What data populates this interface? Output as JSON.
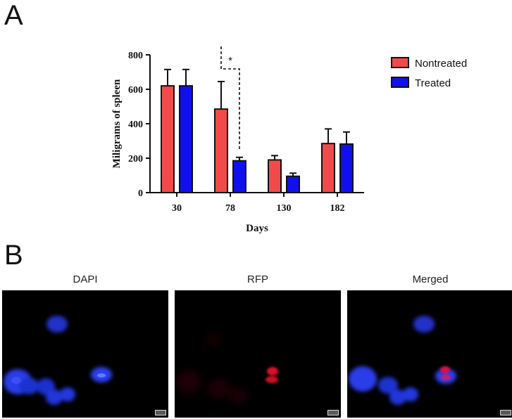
{
  "panels": {
    "a_label": "A",
    "b_label": "B"
  },
  "chart_data": {
    "type": "bar",
    "categories": [
      "30",
      "78",
      "130",
      "182"
    ],
    "series": [
      {
        "name": "Nontreated",
        "color": "#f24a4a",
        "values": [
          620,
          485,
          190,
          285
        ],
        "errors": [
          95,
          160,
          25,
          85
        ]
      },
      {
        "name": "Treated",
        "color": "#1010ee",
        "values": [
          620,
          185,
          95,
          282
        ],
        "errors": [
          95,
          20,
          18,
          70
        ]
      }
    ],
    "xlabel": "Days",
    "ylabel": "Miligrams of spleen",
    "ylim": [
      0,
      800
    ],
    "yticks": [
      0,
      200,
      400,
      600,
      800
    ],
    "legend_position": "top-right",
    "grid": false,
    "significance": {
      "between_category": "78",
      "label": "*"
    }
  },
  "micrographs": [
    {
      "label": "DAPI"
    },
    {
      "label": "RFP"
    },
    {
      "label": "Merged"
    }
  ]
}
